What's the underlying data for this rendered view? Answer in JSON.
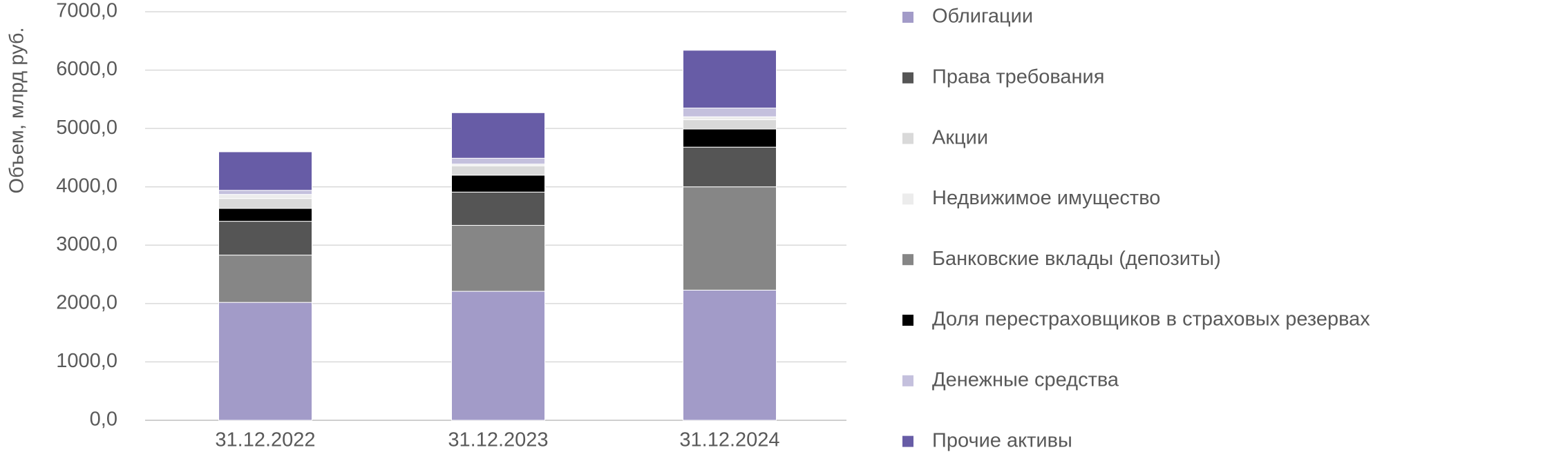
{
  "chart_data": {
    "type": "stacked_bar",
    "y_label": "Объем, млрд руб.",
    "categories": [
      "31.12.2022",
      "31.12.2023",
      "31.12.2024"
    ],
    "series": [
      {
        "name": "Облигации",
        "color": "#a29bc8",
        "values": [
          2020,
          2210,
          2230
        ]
      },
      {
        "name": "Банковские вклады (депозиты)",
        "color": "#868686",
        "values": [
          810,
          1130,
          1770
        ]
      },
      {
        "name": "Права требования",
        "color": "#555555",
        "values": [
          580,
          570,
          680
        ]
      },
      {
        "name": "Доля перестраховщиков в страховых резервах",
        "color": "#000000",
        "values": [
          220,
          290,
          310
        ]
      },
      {
        "name": "Акции",
        "color": "#d9d9d9",
        "values": [
          170,
          160,
          160
        ]
      },
      {
        "name": "Недвижимое имущество",
        "color": "#ececec",
        "values": [
          70,
          30,
          50
        ]
      },
      {
        "name": "Денежные средства",
        "color": "#c4c0dd",
        "values": [
          70,
          100,
          150
        ]
      },
      {
        "name": "Прочие активы",
        "color": "#675ca6",
        "values": [
          660,
          780,
          990
        ]
      }
    ],
    "legend_order": [
      0,
      2,
      4,
      5,
      1,
      3,
      6,
      7
    ],
    "ylim": [
      0,
      7000
    ],
    "yticks": [
      {
        "value": 0,
        "label": "0,0"
      },
      {
        "value": 1000,
        "label": "1000,0"
      },
      {
        "value": 2000,
        "label": "2000,0"
      },
      {
        "value": 3000,
        "label": "3000,0"
      },
      {
        "value": 4000,
        "label": "4000,0"
      },
      {
        "value": 5000,
        "label": "5000,0"
      },
      {
        "value": 6000,
        "label": "6000,0"
      },
      {
        "value": 7000,
        "label": "7000,0"
      }
    ],
    "grid": true
  }
}
